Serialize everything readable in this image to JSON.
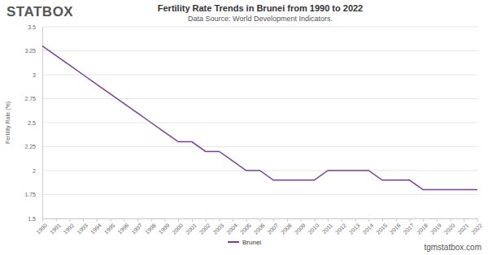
{
  "chart_data": {
    "type": "line",
    "title": "Fertility Rate Trends in Brunei from 1990 to 2022",
    "subtitle": "Data Source: World Development Indicators.",
    "y_label": "Fertility Rate (%)",
    "annotations": [
      "STATBOX",
      "tgmstatbox.com"
    ],
    "categories": [
      "1990",
      "1991",
      "1992",
      "1993",
      "1994",
      "1995",
      "1996",
      "1997",
      "1998",
      "1999",
      "2000",
      "2001",
      "2002",
      "2003",
      "2004",
      "2005",
      "2006",
      "2007",
      "2008",
      "2009",
      "2010",
      "2011",
      "2012",
      "2013",
      "2014",
      "2015",
      "2016",
      "2017",
      "2018",
      "2019",
      "2020",
      "2021",
      "2022"
    ],
    "series": [
      {
        "name": "Brunei",
        "color": "#7b3f99",
        "values": [
          3.3,
          3.2,
          3.1,
          3.0,
          2.9,
          2.8,
          2.7,
          2.6,
          2.5,
          2.4,
          2.3,
          2.3,
          2.2,
          2.2,
          2.1,
          2.0,
          2.0,
          1.9,
          1.9,
          1.9,
          1.9,
          2.0,
          2.0,
          2.0,
          2.0,
          1.9,
          1.9,
          1.9,
          1.8,
          1.8,
          1.8,
          1.8,
          1.8
        ]
      }
    ],
    "ylim": [
      1.5,
      3.5
    ],
    "yticks": [
      1.5,
      1.75,
      2,
      2.25,
      2.5,
      2.75,
      3,
      3.25,
      3.5
    ],
    "grid": true,
    "legend": "bottom"
  }
}
